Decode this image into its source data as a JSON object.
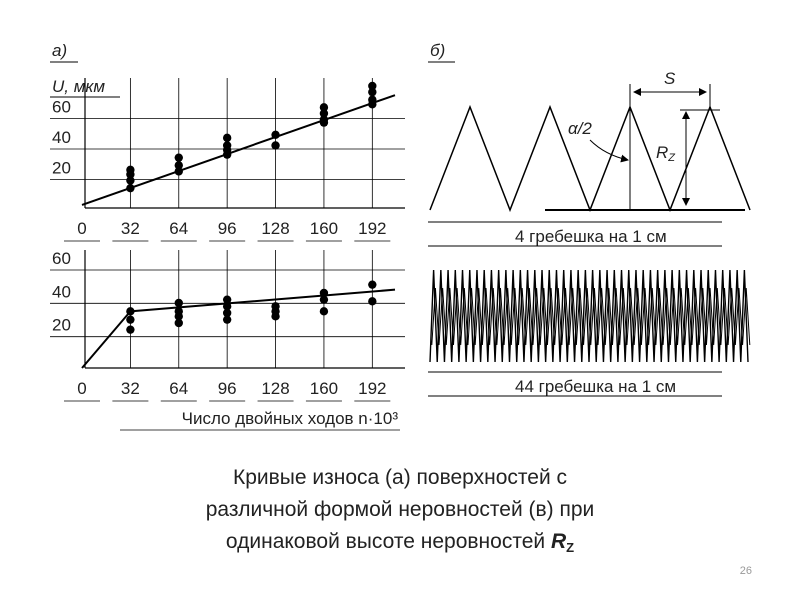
{
  "chart_data": [
    {
      "type": "scatter",
      "title": "а)",
      "y_label": "U, мкм",
      "xlim": [
        0,
        207
      ],
      "ylim": [
        0,
        80
      ],
      "xticks": [
        0,
        32,
        64,
        96,
        128,
        160,
        192
      ],
      "yticks": [
        20,
        40,
        60
      ],
      "grid": true,
      "color": "#000000",
      "points": {
        "x": [
          32,
          32,
          32,
          32,
          64,
          64,
          64,
          96,
          96,
          96,
          96,
          128,
          128,
          160,
          160,
          160,
          160,
          192,
          192,
          192,
          192
        ],
        "y": [
          25,
          22,
          18,
          13,
          33,
          28,
          24,
          46,
          41,
          38,
          35,
          48,
          41,
          66,
          62,
          58,
          56,
          80,
          76,
          71,
          68
        ]
      },
      "trend_line": {
        "x": [
          0,
          207
        ],
        "y": [
          2,
          74
        ]
      }
    },
    {
      "type": "scatter",
      "x_label": "Число двойных ходов n·10³",
      "xlim": [
        0,
        207
      ],
      "ylim": [
        0,
        66
      ],
      "xticks": [
        0,
        32,
        64,
        96,
        128,
        160,
        192
      ],
      "yticks": [
        20,
        40,
        60
      ],
      "grid": true,
      "color": "#000000",
      "points": {
        "x": [
          32,
          32,
          32,
          64,
          64,
          64,
          64,
          96,
          96,
          96,
          96,
          128,
          128,
          128,
          160,
          160,
          160,
          192,
          192
        ],
        "y": [
          34,
          29,
          23,
          39,
          34,
          31,
          27,
          41,
          37,
          33,
          29,
          37,
          34,
          31,
          45,
          41,
          34,
          50,
          40
        ]
      },
      "trend_line": {
        "x": [
          0,
          32,
          207
        ],
        "y": [
          0,
          34,
          47
        ]
      }
    }
  ],
  "diagram": {
    "label": "б)",
    "s": "S",
    "alpha": "α/2",
    "r": "R",
    "r_sub": "Z",
    "caption_top": "4 гребешка на 1 см",
    "caption_bottom": "44 гребешка на 1 см"
  },
  "caption": {
    "line1": "Кривые износа (а) поверхностей с",
    "line2": "различной формой неровностей (в) при",
    "line3": "одинаковой высоте неровностей ",
    "rz": "R",
    "rz_sub": "Z"
  },
  "page_number": "26"
}
